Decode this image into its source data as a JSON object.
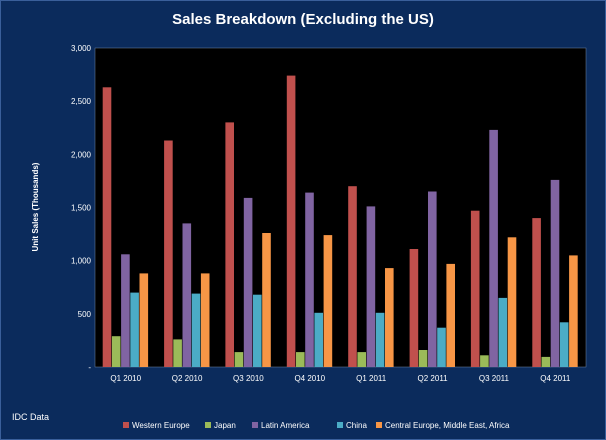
{
  "chart_data": {
    "type": "bar",
    "title": "Sales Breakdown (Excluding the US)",
    "xlabel": "",
    "ylabel": "Unit Sales (Thousands)",
    "ylim": [
      0,
      3000
    ],
    "yticks": [
      0,
      500,
      1000,
      1500,
      2000,
      2500,
      3000
    ],
    "ytick_labels": [
      "-",
      "500",
      "1,000",
      "1,500",
      "2,000",
      "2,500",
      "3,000"
    ],
    "grid": false,
    "legend_position": "bottom",
    "categories": [
      "Q1 2010",
      "Q2 2010",
      "Q3 2010",
      "Q4 2010",
      "Q1 2011",
      "Q2 2011",
      "Q3 2011",
      "Q4 2011"
    ],
    "series": [
      {
        "name": "Western Europe",
        "color": "#c0504d",
        "values": [
          2630,
          2130,
          2300,
          2740,
          1700,
          1110,
          1470,
          1400
        ]
      },
      {
        "name": "Japan",
        "color": "#9bbb59",
        "values": [
          290,
          260,
          140,
          140,
          140,
          160,
          110,
          95
        ]
      },
      {
        "name": "Latin America",
        "color": "#8064a2",
        "values": [
          1060,
          1350,
          1590,
          1640,
          1510,
          1650,
          2230,
          1760
        ]
      },
      {
        "name": "China",
        "color": "#4bacc6",
        "values": [
          700,
          690,
          680,
          510,
          510,
          370,
          650,
          420
        ]
      },
      {
        "name": "Central Europe, Middle East, Africa",
        "color": "#f79646",
        "values": [
          880,
          880,
          1260,
          1240,
          930,
          970,
          1220,
          1050
        ]
      }
    ],
    "source": "IDC Data"
  },
  "colors": {
    "background": "#0b2b5c",
    "plot_background": "#000000",
    "text": "#ffffff"
  }
}
